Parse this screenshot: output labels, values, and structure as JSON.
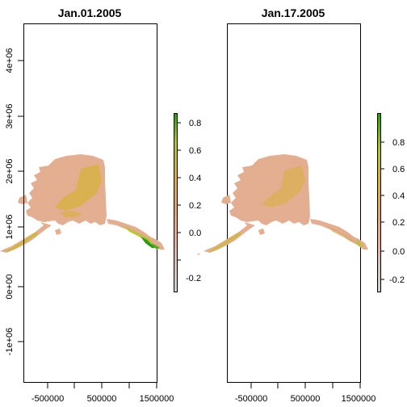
{
  "panels": [
    {
      "title": "Jan.01.2005",
      "legend_ticks": [
        "0.8",
        "0.6",
        "0.4",
        "0.2",
        "0.0",
        "-0.2"
      ],
      "legend_range": [
        -0.3,
        0.85
      ],
      "hot_southeast": true
    },
    {
      "title": "Jan.17.2005",
      "legend_ticks": [
        "0.8",
        "0.6",
        "0.4",
        "0.2",
        "0.0",
        "-0.2"
      ],
      "legend_range": [
        -0.3,
        1.0
      ],
      "hot_southeast": false
    }
  ],
  "axes": {
    "x_ticks": [
      "-500000",
      "500000",
      "1500000"
    ],
    "y_ticks": [
      "-1e+06",
      "0e+00",
      "1e+06",
      "2e+06",
      "3e+06",
      "4e+06"
    ]
  },
  "colors": {
    "low": "#d3d3d3",
    "mid_low": "#e4ae95",
    "mid": "#d5b13b",
    "mid_high": "#b5c22a",
    "high": "#2b9a12"
  }
}
